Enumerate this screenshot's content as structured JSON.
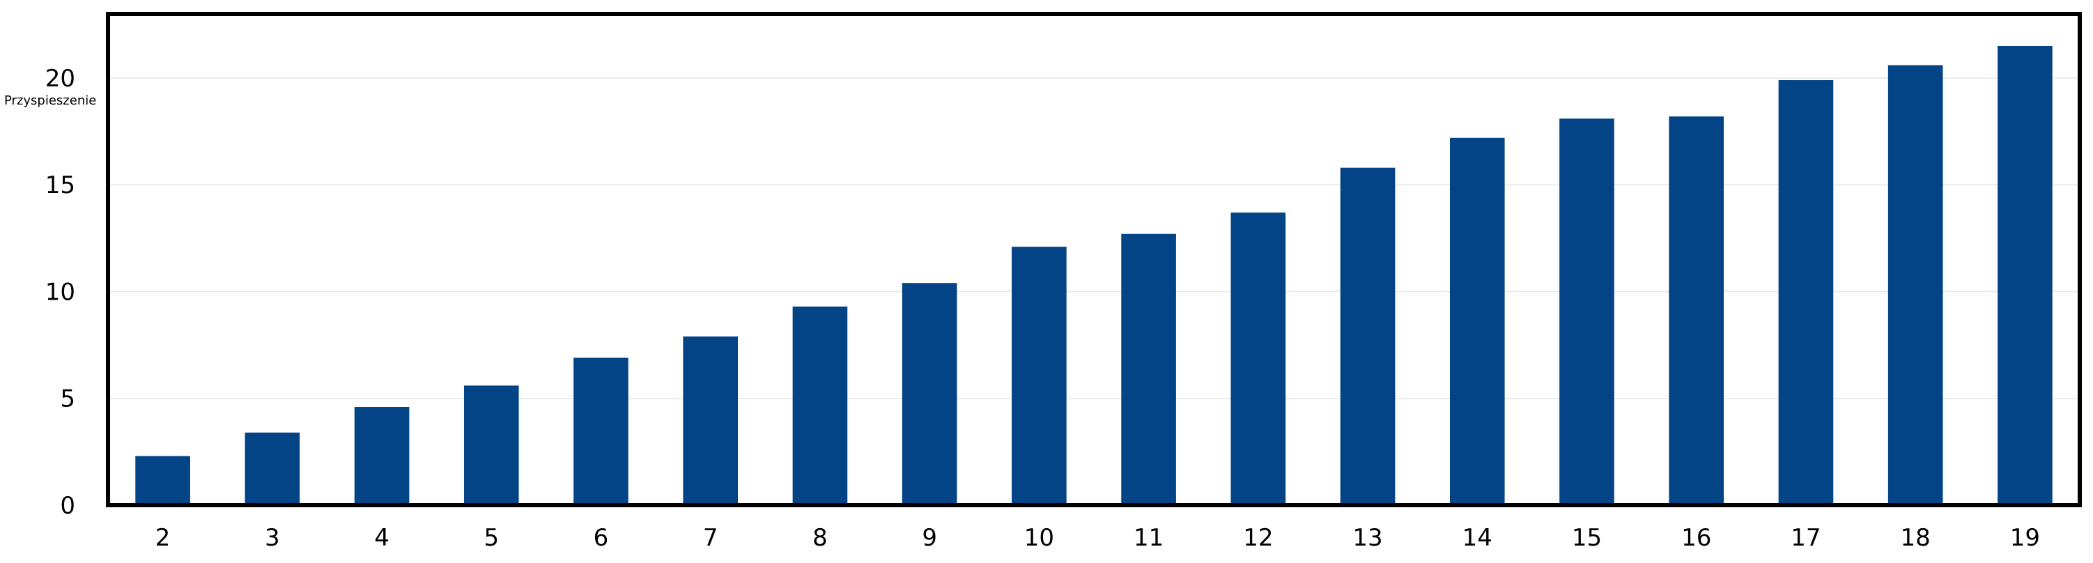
{
  "chart_data": {
    "type": "bar",
    "title": "",
    "xlabel": "",
    "ylabel": "Przyspieszenie",
    "categories": [
      "2",
      "3",
      "4",
      "5",
      "6",
      "7",
      "8",
      "9",
      "10",
      "11",
      "12",
      "13",
      "14",
      "15",
      "16",
      "17",
      "18",
      "19"
    ],
    "values": [
      2.3,
      3.4,
      4.6,
      5.6,
      6.9,
      7.9,
      9.3,
      10.4,
      12.1,
      12.7,
      13.7,
      15.8,
      17.2,
      18.1,
      18.2,
      19.9,
      20.6,
      21.5
    ],
    "ylim": [
      0,
      23
    ],
    "yticks": [
      "0",
      "5",
      "10",
      "15",
      "20"
    ],
    "grid": true,
    "legend": "none",
    "colors": {
      "bar": "#034486",
      "grid": "#e6e6e6",
      "frame": "#000000"
    }
  }
}
